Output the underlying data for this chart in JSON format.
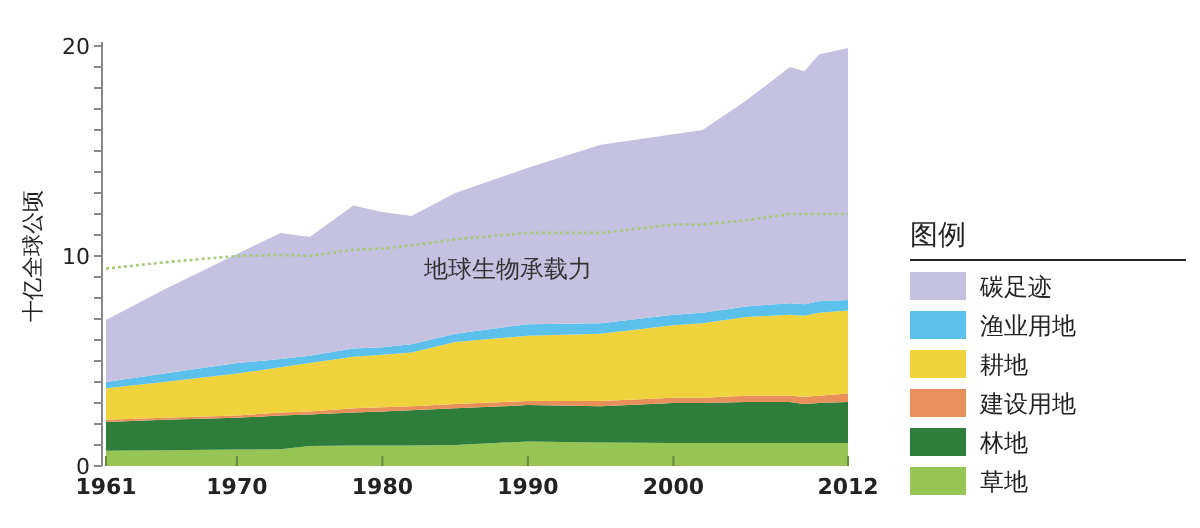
{
  "chart_data": {
    "type": "area",
    "stacked": true,
    "ylabel": "十亿全球公顷",
    "legend_title": "图例",
    "legend": "right",
    "x": [
      1961,
      1965,
      1970,
      1973,
      1975,
      1978,
      1980,
      1982,
      1985,
      1990,
      1995,
      2000,
      2002,
      2005,
      2008,
      2009,
      2010,
      2012
    ],
    "xlim": [
      1961,
      2012
    ],
    "xticks": [
      1961,
      1970,
      1980,
      1990,
      2000,
      2012
    ],
    "ylim": [
      0,
      20
    ],
    "yticks": [
      0,
      {
        "value": 1,
        "label": null
      },
      {
        "value": 2,
        "label": null
      },
      {
        "value": 3,
        "label": null
      },
      {
        "value": 4,
        "label": null
      },
      {
        "value": 5,
        "label": null
      },
      {
        "value": 6,
        "label": null
      },
      {
        "value": 7,
        "label": null
      },
      {
        "value": 8,
        "label": null
      },
      {
        "value": 9,
        "label": null
      },
      10,
      {
        "value": 11,
        "label": null
      },
      {
        "value": 12,
        "label": null
      },
      {
        "value": 13,
        "label": null
      },
      {
        "value": 14,
        "label": null
      },
      {
        "value": 15,
        "label": null
      },
      {
        "value": 16,
        "label": null
      },
      {
        "value": 17,
        "label": null
      },
      {
        "value": 18,
        "label": null
      },
      {
        "value": 19,
        "label": null
      },
      20
    ],
    "series": [
      {
        "name": "草地",
        "color": "#96c554",
        "values": [
          0.73,
          0.75,
          0.78,
          0.8,
          0.95,
          0.98,
          0.98,
          0.98,
          1.0,
          1.17,
          1.12,
          1.1,
          1.1,
          1.1,
          1.1,
          1.1,
          1.1,
          1.1
        ]
      },
      {
        "name": "林地",
        "color": "#2e7d3a",
        "values": [
          1.37,
          1.45,
          1.52,
          1.6,
          1.5,
          1.57,
          1.62,
          1.67,
          1.75,
          1.73,
          1.73,
          1.9,
          1.9,
          1.95,
          1.95,
          1.85,
          1.9,
          1.95
        ]
      },
      {
        "name": "建设用地",
        "color": "#e8905a",
        "values": [
          0.1,
          0.1,
          0.1,
          0.15,
          0.15,
          0.2,
          0.2,
          0.2,
          0.2,
          0.2,
          0.25,
          0.25,
          0.25,
          0.3,
          0.3,
          0.35,
          0.35,
          0.4
        ]
      },
      {
        "name": "耕地",
        "color": "#f0d23c",
        "values": [
          1.5,
          1.7,
          2.0,
          2.15,
          2.3,
          2.45,
          2.5,
          2.55,
          2.95,
          3.1,
          3.2,
          3.45,
          3.55,
          3.75,
          3.85,
          3.85,
          3.95,
          3.95
        ]
      },
      {
        "name": "渔业用地",
        "color": "#5bc0eb",
        "values": [
          0.3,
          0.4,
          0.5,
          0.4,
          0.35,
          0.4,
          0.35,
          0.4,
          0.4,
          0.55,
          0.5,
          0.5,
          0.5,
          0.5,
          0.55,
          0.55,
          0.55,
          0.5
        ]
      },
      {
        "name": "碳足迹",
        "color": "#c5c1e0",
        "values": [
          2.95,
          4.0,
          5.2,
          6.0,
          5.65,
          6.8,
          6.45,
          6.1,
          6.7,
          7.45,
          8.5,
          8.6,
          8.7,
          9.8,
          11.25,
          11.1,
          11.75,
          12.0
        ]
      },
      {
        "name": "地球生物承载力",
        "type": "line",
        "line_style": "dotted",
        "color": "#a9c97c",
        "values": [
          9.4,
          9.7,
          10.0,
          10.05,
          10.0,
          10.3,
          10.35,
          10.5,
          10.8,
          11.1,
          11.1,
          11.5,
          11.5,
          11.7,
          12.0,
          12.0,
          12.0,
          12.0
        ]
      }
    ]
  }
}
